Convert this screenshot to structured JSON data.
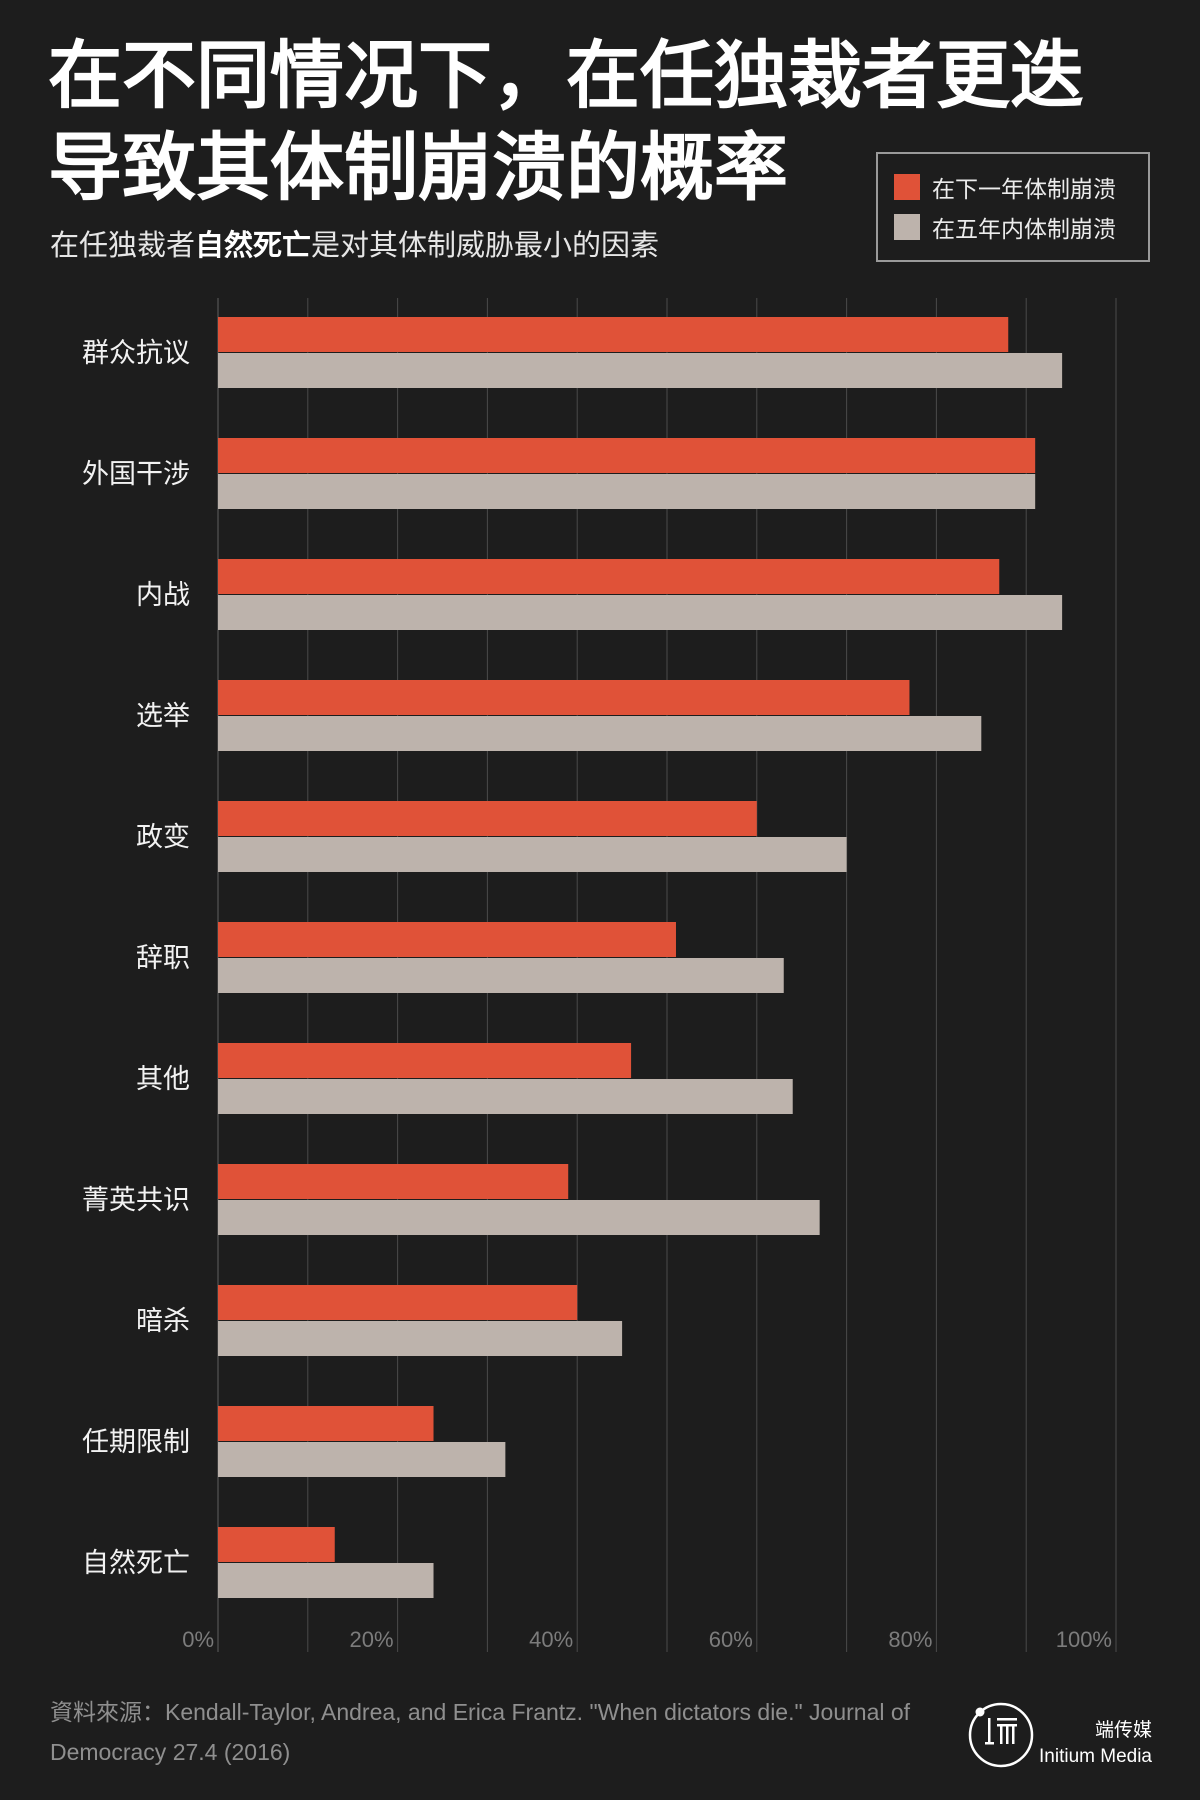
{
  "header": {
    "title_line1": "在不同情况下，在任独裁者更迭",
    "title_line2": "导致其体制崩溃的概率",
    "subtitle_pre": "在任独裁者",
    "subtitle_bold": "自然死亡",
    "subtitle_post": "是对其体制威胁最小的因素"
  },
  "colors": {
    "background": "#1d1d1d",
    "next_year": "#e05238",
    "five_years": "#bdb3ac",
    "grid": "#4a4a4a",
    "tick_label": "#7c7c7c"
  },
  "chart_data": {
    "type": "bar",
    "orientation": "horizontal",
    "categories": [
      "群众抗议",
      "外国干涉",
      "内战",
      "选举",
      "政变",
      "辞职",
      "其他",
      "菁英共识",
      "暗杀",
      "任期限制",
      "自然死亡"
    ],
    "series": [
      {
        "name": "在下一年体制崩溃",
        "color": "#e05238",
        "values": [
          88,
          91,
          87,
          77,
          60,
          51,
          46,
          39,
          40,
          24,
          13
        ]
      },
      {
        "name": "在五年内体制崩溃",
        "color": "#bdb3ac",
        "values": [
          94,
          91,
          94,
          85,
          70,
          63,
          64,
          67,
          45,
          32,
          24
        ]
      }
    ],
    "xlim": [
      0,
      100
    ],
    "xticks": [
      "0%",
      "20%",
      "40%",
      "60%",
      "80%",
      "100%"
    ],
    "grid": true,
    "legend_position": "top-right"
  },
  "footer": {
    "source": "資料來源：Kendall-Taylor, Andrea, and Erica Frantz. \"When dictators die.\" Journal of Democracy 27.4 (2016)",
    "brand_cn": "端传媒",
    "brand_en": "Initium Media",
    "logo_icon": "initium-logo-icon"
  }
}
